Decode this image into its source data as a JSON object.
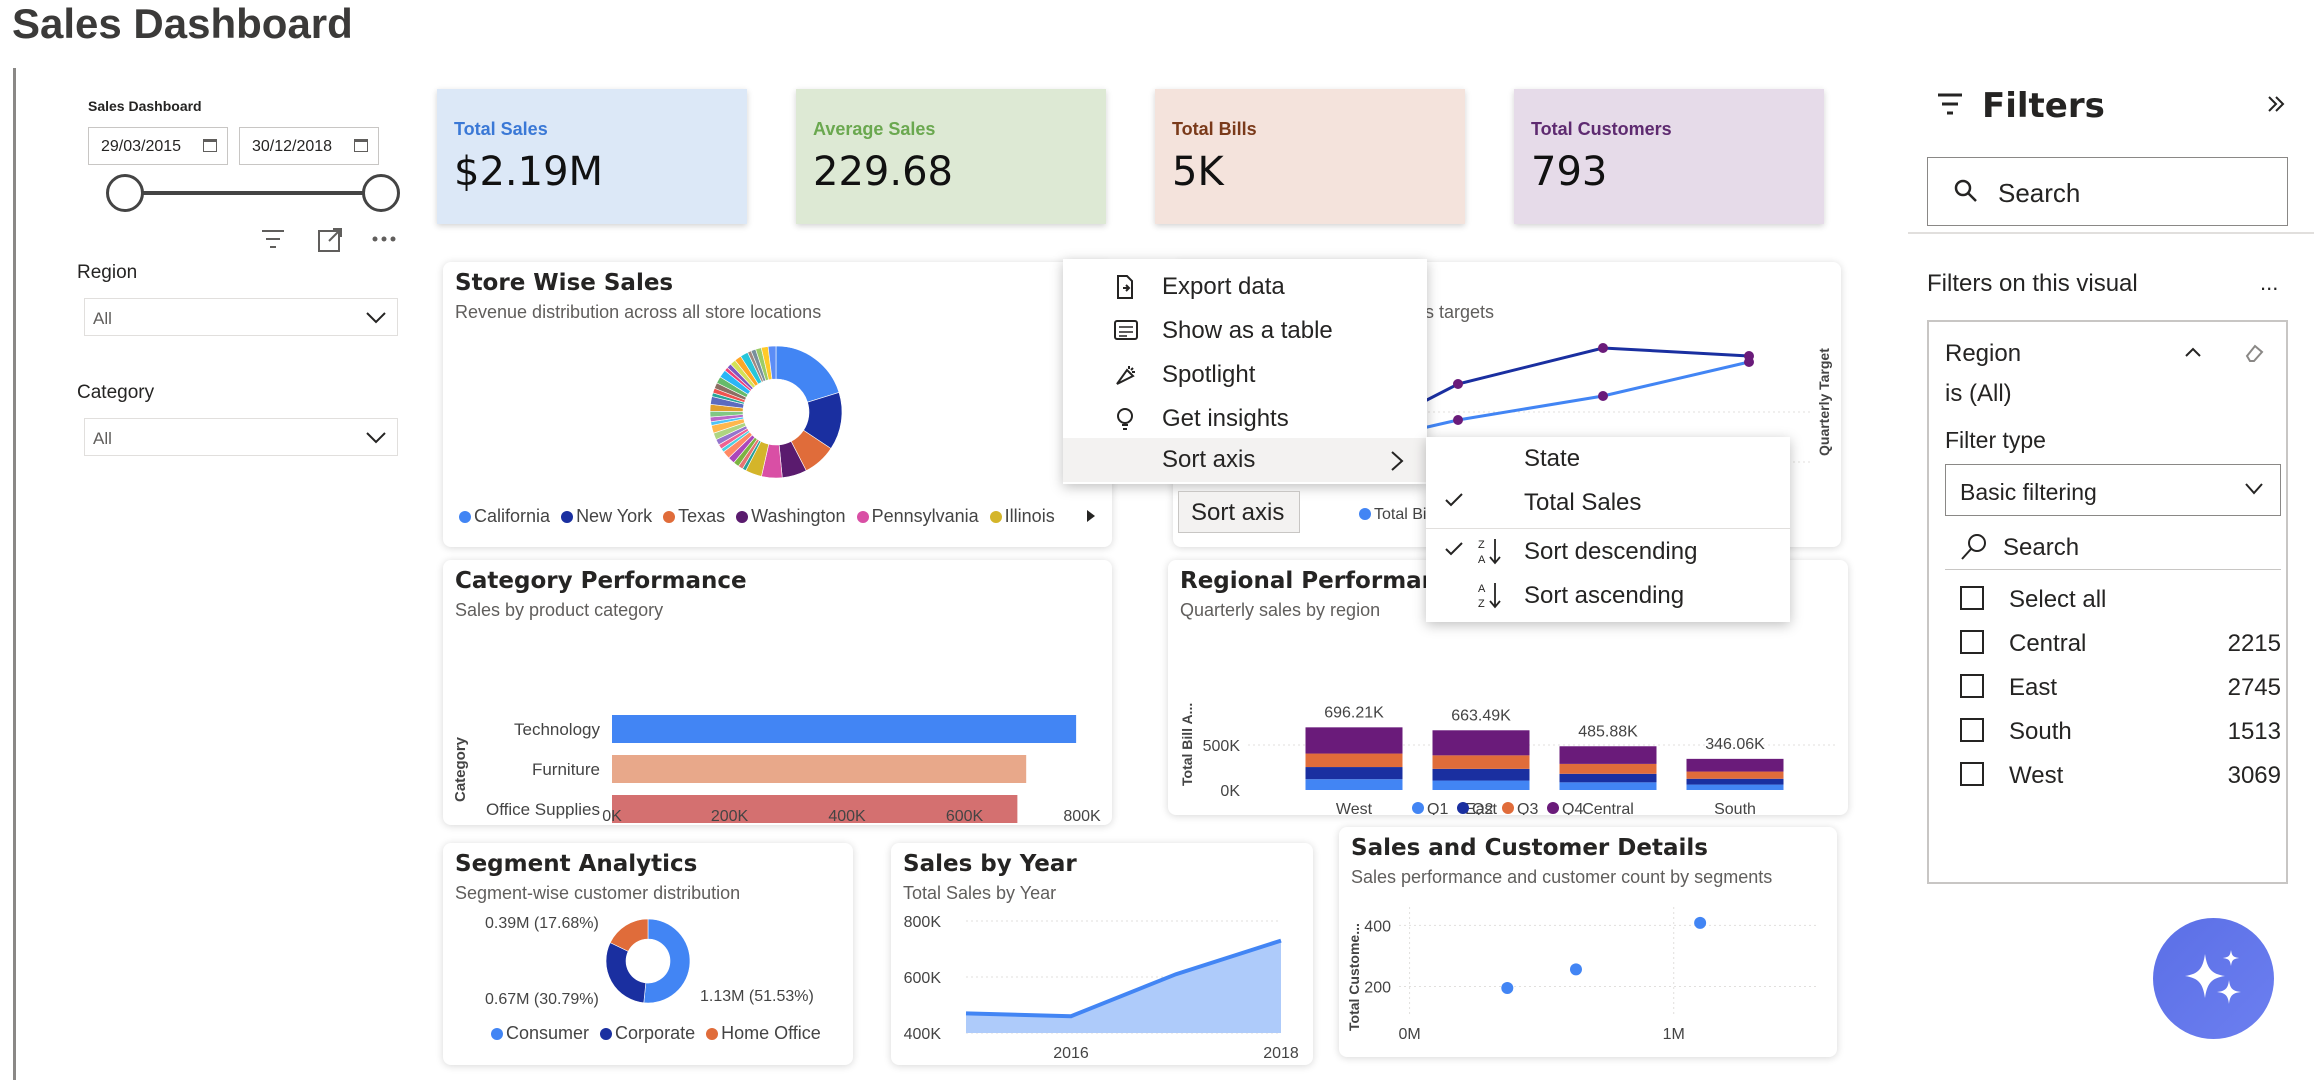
{
  "page_title": "Sales Dashboard",
  "slicers": {
    "date": {
      "title": "Sales Dashboard",
      "start": "29/03/2015",
      "end": "30/12/2018"
    },
    "region": {
      "label": "Region",
      "value": "All"
    },
    "category": {
      "label": "Category",
      "value": "All"
    }
  },
  "kpis": [
    {
      "label": "Total Sales",
      "value": "$2.19M",
      "bg": "#dce8f7",
      "color": "#3a78d6"
    },
    {
      "label": "Average Sales",
      "value": "229.68",
      "bg": "#dde9d4",
      "color": "#6aa84f"
    },
    {
      "label": "Total Bills",
      "value": "5K",
      "bg": "#f4e3dc",
      "color": "#7a3a1a"
    },
    {
      "label": "Total Customers",
      "value": "793",
      "bg": "#e6dbe9",
      "color": "#5e2a70"
    }
  ],
  "store_wise": {
    "title": "Store Wise Sales",
    "subtitle": "Revenue distribution across all store locations",
    "legend": [
      {
        "name": "California",
        "color": "#4285f4"
      },
      {
        "name": "New York",
        "color": "#1a2fa0"
      },
      {
        "name": "Texas",
        "color": "#e06c3a"
      },
      {
        "name": "Washington",
        "color": "#5a1b6e"
      },
      {
        "name": "Pennsylvania",
        "color": "#d94fa5"
      },
      {
        "name": "Illinois",
        "color": "#d4b52a"
      }
    ]
  },
  "target_card": {
    "subtitle_fragment": "s targets",
    "y2_label": "Quarterly Target",
    "legend_fragment": "Total Bi"
  },
  "context_menu": {
    "items": [
      "Export data",
      "Show as a table",
      "Spotlight",
      "Get insights",
      "Sort axis"
    ],
    "submenu": [
      "State",
      "Total Sales",
      "Sort descending",
      "Sort ascending"
    ],
    "tooltip": "Sort axis"
  },
  "category_perf": {
    "title": "Category Performance",
    "subtitle": "Sales by product category",
    "ylabel": "Category"
  },
  "regional_perf": {
    "title": "Regional Performance",
    "subtitle": "Quarterly sales by region",
    "ylabel": "Total Bill A..."
  },
  "segment": {
    "title": "Segment Analytics",
    "subtitle": "Segment-wise customer distribution",
    "labels": [
      "0.39M (17.68%)",
      "0.67M (30.79%)",
      "1.13M (51.53%)"
    ],
    "legend": [
      {
        "name": "Consumer",
        "color": "#4285f4"
      },
      {
        "name": "Corporate",
        "color": "#1a2fa0"
      },
      {
        "name": "Home Office",
        "color": "#e06c3a"
      }
    ]
  },
  "sales_year": {
    "title": "Sales by Year",
    "subtitle": "Total Sales by Year"
  },
  "sales_customer": {
    "title": "Sales and Customer Details",
    "subtitle": "Sales performance and customer count by segments",
    "ylabel": "Total Custome..."
  },
  "filters": {
    "title": "Filters",
    "search_placeholder": "Search",
    "section": "Filters on this visual",
    "more": "...",
    "field": "Region",
    "condition": "is (All)",
    "filter_type_label": "Filter type",
    "filter_type": "Basic filtering",
    "list_search": "Search",
    "select_all": "Select all",
    "options": [
      {
        "name": "Central",
        "count": "2215"
      },
      {
        "name": "East",
        "count": "2745"
      },
      {
        "name": "South",
        "count": "1513"
      },
      {
        "name": "West",
        "count": "3069"
      }
    ]
  },
  "chart_data": [
    {
      "type": "pie",
      "title": "Store Wise Sales",
      "categories": [
        "California",
        "New York",
        "Texas",
        "Washington",
        "Pennsylvania",
        "Illinois"
      ],
      "values": [
        20,
        14,
        8,
        6,
        5,
        4
      ],
      "note_other_slices_count": 30
    },
    {
      "type": "bar",
      "title": "Category Performance",
      "categories": [
        "Technology",
        "Furniture",
        "Office Supplies"
      ],
      "values": [
        790000,
        705000,
        690000
      ],
      "ylabel": "Category",
      "x_ticks": [
        "0K",
        "200K",
        "400K",
        "600K",
        "800K"
      ],
      "xlim": [
        0,
        800000
      ],
      "colors": [
        "#4285f4",
        "#e8a88a",
        "#d47070"
      ]
    },
    {
      "type": "bar",
      "title": "Regional Performance",
      "categories": [
        "West",
        "East",
        "Central",
        "South"
      ],
      "totals": [
        "696.21K",
        "663.49K",
        "485.88K",
        "346.06K"
      ],
      "total_values": [
        696210,
        663490,
        485880,
        346060
      ],
      "ylabel": "Total Bill A...",
      "y_ticks": [
        "0K",
        "500K"
      ],
      "series": [
        {
          "name": "Q1",
          "color": "#4285f4",
          "values": [
            120000,
            105000,
            85000,
            60000
          ]
        },
        {
          "name": "Q2",
          "color": "#1a2fa0",
          "values": [
            135000,
            130000,
            95000,
            65000
          ]
        },
        {
          "name": "Q3",
          "color": "#e06c3a",
          "values": [
            150000,
            150000,
            110000,
            80000
          ]
        },
        {
          "name": "Q4",
          "color": "#6a1b7a",
          "values": [
            291210,
            278490,
            195880,
            141060
          ]
        }
      ]
    },
    {
      "type": "pie",
      "title": "Segment Analytics",
      "categories": [
        "Consumer",
        "Corporate",
        "Home Office"
      ],
      "values": [
        1.13,
        0.67,
        0.39
      ],
      "percent": [
        51.53,
        30.79,
        17.68
      ]
    },
    {
      "type": "area",
      "title": "Sales by Year",
      "x": [
        "2015",
        "2016",
        "2017",
        "2018"
      ],
      "values": [
        470000,
        460000,
        610000,
        730000
      ],
      "y_ticks": [
        "400K",
        "600K",
        "800K"
      ],
      "x_ticks": [
        "2016",
        "2018"
      ],
      "ylim": [
        400000,
        800000
      ]
    },
    {
      "type": "scatter",
      "title": "Sales and Customer Details",
      "points": [
        {
          "x": 0.37,
          "y": 195
        },
        {
          "x": 0.63,
          "y": 256
        },
        {
          "x": 1.1,
          "y": 408
        }
      ],
      "x_ticks": [
        "0M",
        "1M"
      ],
      "y_ticks": [
        "200",
        "400"
      ],
      "xlim": [
        -0.04,
        1.55
      ],
      "ylim": [
        100,
        460
      ]
    }
  ]
}
